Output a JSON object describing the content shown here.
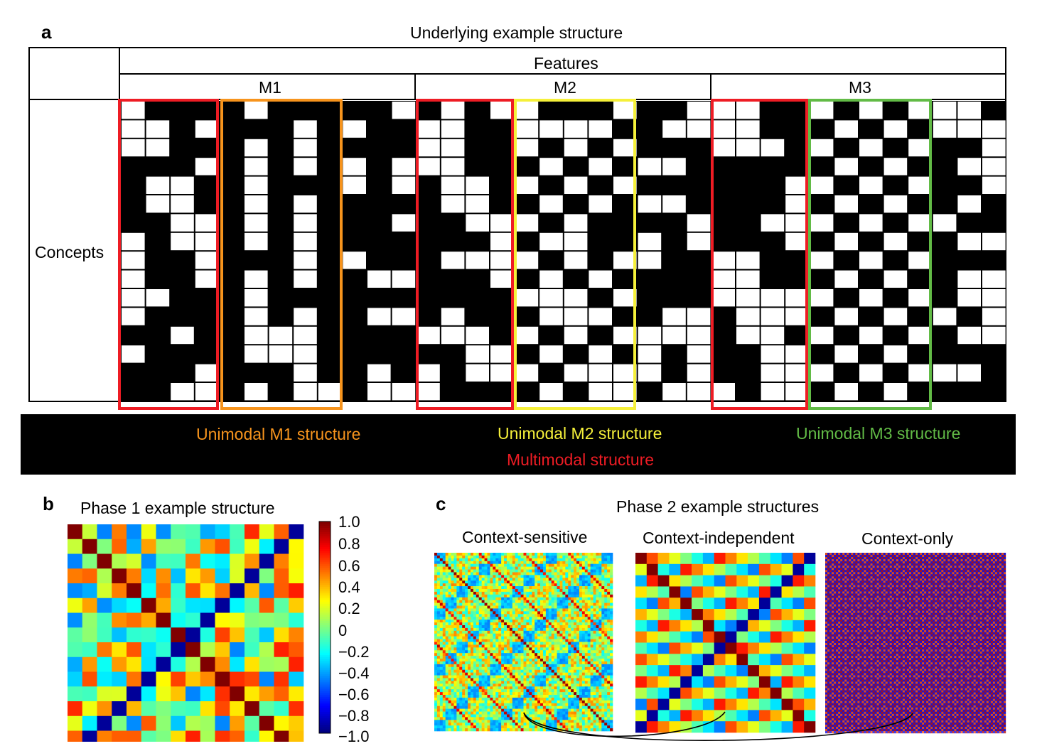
{
  "panel_a": {
    "letter": "a",
    "title": "Underlying example structure",
    "features_label": "Features",
    "concepts_label": "Concepts",
    "modalities": [
      "M1",
      "M2",
      "M3"
    ],
    "legend": {
      "m1": "Unimodal M1 structure",
      "m2": "Unimodal M2 structure",
      "m3": "Unimodal M3 structure",
      "multi": "Multimodal structure"
    },
    "colors": {
      "multimodal": "#ee1c24",
      "m1": "#f7941d",
      "m2": "#f5f03a",
      "m3": "#62bb46"
    }
  },
  "panel_b": {
    "letter": "b",
    "title": "Phase 1 example structure",
    "colorbar_ticks": [
      "1.0",
      "0.8",
      "0.6",
      "0.4",
      "0.2",
      "0",
      "−0.2",
      "−0.4",
      "−0.6",
      "−0.8",
      "−1.0"
    ],
    "colorbar_range": [
      -1.0,
      1.0
    ]
  },
  "panel_c": {
    "letter": "c",
    "title": "Phase 2 example structures",
    "matrices": [
      "Context-sensitive",
      "Context-independent",
      "Context-only"
    ]
  }
}
